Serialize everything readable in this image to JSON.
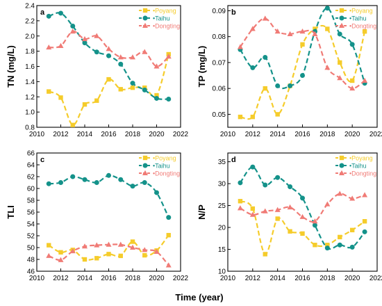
{
  "figure": {
    "xlabel": "Time (year)"
  },
  "colors": {
    "Poyang": "#f5cc2b",
    "Taihu": "#14928a",
    "Dongting": "#f07b76"
  },
  "chart_data": [
    {
      "panel": "a",
      "type": "line",
      "ylabel": "TN (mg/L)",
      "xlim": [
        2010,
        2022
      ],
      "ylim": [
        0.8,
        2.4
      ],
      "xticks": [
        2010,
        2012,
        2014,
        2016,
        2018,
        2020,
        2022
      ],
      "yticks": [
        0.8,
        1.0,
        1.2,
        1.4,
        1.6,
        1.8,
        2.0,
        2.2,
        2.4
      ],
      "ytick_labels": [
        "0.8",
        "1.0",
        "1.2",
        "1.4",
        "1.6",
        "1.8",
        "2.0",
        "2.2",
        "2.4"
      ],
      "legend": "top-right",
      "grid": false,
      "x": [
        2011,
        2012,
        2013,
        2014,
        2015,
        2016,
        2017,
        2018,
        2019,
        2020,
        2021
      ],
      "series": [
        {
          "name": "Poyang",
          "marker": "square",
          "values": [
            1.27,
            1.19,
            0.83,
            1.1,
            1.15,
            1.43,
            1.3,
            1.32,
            1.32,
            1.22,
            1.76
          ]
        },
        {
          "name": "Taihu",
          "marker": "circle",
          "values": [
            2.26,
            2.3,
            2.13,
            1.91,
            1.79,
            1.74,
            1.63,
            1.38,
            1.29,
            1.18,
            1.17
          ]
        },
        {
          "name": "Dongting",
          "marker": "triangle",
          "values": [
            1.85,
            1.87,
            2.06,
            1.96,
            2.0,
            1.83,
            1.72,
            1.72,
            1.79,
            1.6,
            1.73
          ]
        }
      ]
    },
    {
      "panel": "b",
      "type": "line",
      "ylabel": "TP (mg/L)",
      "xlim": [
        2010,
        2022
      ],
      "ylim": [
        0.045,
        0.092
      ],
      "xticks": [
        2010,
        2012,
        2014,
        2016,
        2018,
        2020,
        2022
      ],
      "yticks": [
        0.05,
        0.06,
        0.07,
        0.08,
        0.09
      ],
      "ytick_labels": [
        "0.05",
        "0.06",
        "0.07",
        "0.08",
        "0.09"
      ],
      "legend": "top-right",
      "grid": false,
      "x": [
        2011,
        2012,
        2013,
        2014,
        2015,
        2016,
        2017,
        2018,
        2019,
        2020,
        2021
      ],
      "series": [
        {
          "name": "Poyang",
          "marker": "square",
          "values": [
            0.049,
            0.049,
            0.06,
            0.05,
            0.061,
            0.077,
            0.083,
            0.083,
            0.07,
            0.063,
            0.082
          ]
        },
        {
          "name": "Taihu",
          "marker": "circle",
          "values": [
            0.075,
            0.068,
            0.072,
            0.061,
            0.061,
            0.065,
            0.082,
            0.091,
            0.081,
            0.077,
            0.062
          ]
        },
        {
          "name": "Dongting",
          "marker": "triangle",
          "values": [
            0.076,
            0.083,
            0.087,
            0.082,
            0.081,
            0.082,
            0.081,
            0.068,
            0.064,
            0.06,
            0.063
          ]
        }
      ]
    },
    {
      "panel": "c",
      "type": "line",
      "ylabel": "TLI",
      "xlim": [
        2010,
        2022
      ],
      "ylim": [
        46,
        66
      ],
      "xticks": [
        2010,
        2012,
        2014,
        2016,
        2018,
        2020,
        2022
      ],
      "yticks": [
        46,
        48,
        50,
        52,
        54,
        56,
        58,
        60,
        62,
        64,
        66
      ],
      "ytick_labels": [
        "46",
        "48",
        "50",
        "52",
        "54",
        "56",
        "58",
        "60",
        "62",
        "64",
        "66"
      ],
      "legend": "top-right",
      "grid": false,
      "x": [
        2011,
        2012,
        2013,
        2014,
        2015,
        2016,
        2017,
        2018,
        2019,
        2020,
        2021
      ],
      "series": [
        {
          "name": "Poyang",
          "marker": "square",
          "values": [
            50.4,
            49.2,
            49.6,
            48.0,
            48.2,
            48.9,
            48.6,
            51.0,
            48.7,
            49.5,
            52.1
          ]
        },
        {
          "name": "Taihu",
          "marker": "circle",
          "values": [
            60.8,
            61.0,
            62.0,
            61.5,
            61.0,
            62.2,
            61.5,
            60.4,
            61.0,
            59.3,
            55.1
          ]
        },
        {
          "name": "Dongting",
          "marker": "triangle",
          "values": [
            48.6,
            47.9,
            49.4,
            50.2,
            50.4,
            50.5,
            50.5,
            50.0,
            49.6,
            49.3,
            47.0
          ]
        }
      ]
    },
    {
      "panel": "d",
      "type": "line",
      "ylabel": "N/P",
      "xlim": [
        2010,
        2022
      ],
      "ylim": [
        10,
        37
      ],
      "xticks": [
        2010,
        2012,
        2014,
        2016,
        2018,
        2020,
        2022
      ],
      "yticks": [
        10,
        15,
        20,
        25,
        30,
        35
      ],
      "ytick_labels": [
        "10",
        "15",
        "20",
        "25",
        "30",
        "35"
      ],
      "legend": "top-right",
      "grid": false,
      "x": [
        2011,
        2012,
        2013,
        2014,
        2015,
        2016,
        2017,
        2018,
        2019,
        2020,
        2021
      ],
      "series": [
        {
          "name": "Poyang",
          "marker": "square",
          "values": [
            26.0,
            24.3,
            13.9,
            22.0,
            19.1,
            18.6,
            16.0,
            16.0,
            17.8,
            19.4,
            21.4
          ]
        },
        {
          "name": "Taihu",
          "marker": "circle",
          "values": [
            30.2,
            33.8,
            29.7,
            31.4,
            29.3,
            26.7,
            20.5,
            15.3,
            16.0,
            15.5,
            19.0
          ]
        },
        {
          "name": "Dongting",
          "marker": "triangle",
          "values": [
            24.4,
            22.9,
            23.7,
            24.0,
            24.6,
            22.4,
            21.4,
            25.3,
            27.7,
            26.6,
            27.4
          ]
        }
      ]
    }
  ]
}
